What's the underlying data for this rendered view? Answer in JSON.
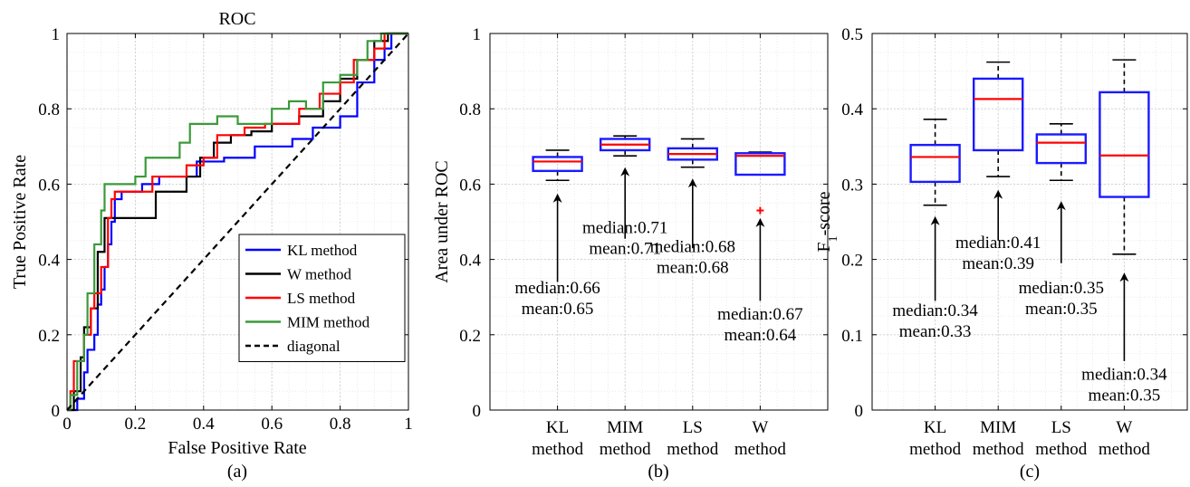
{
  "chart_data": [
    {
      "type": "line",
      "title": "ROC",
      "xlabel": "False Positive Rate",
      "ylabel": "True Positive Rate",
      "xlim": [
        0,
        1
      ],
      "ylim": [
        0,
        1
      ],
      "xticks": [
        "0",
        "0.2",
        "0.4",
        "0.6",
        "0.8",
        "1"
      ],
      "yticks": [
        "0",
        "0.2",
        "0.4",
        "0.6",
        "0.8",
        "1"
      ],
      "grid": true,
      "legend_position": "lower-right",
      "caption": "(a)",
      "series": [
        {
          "name": "KL method",
          "color": "#0000ff",
          "style": "solid",
          "points": [
            [
              0,
              0
            ],
            [
              0.03,
              0.03
            ],
            [
              0.05,
              0.1
            ],
            [
              0.06,
              0.16
            ],
            [
              0.08,
              0.2
            ],
            [
              0.09,
              0.28
            ],
            [
              0.1,
              0.32
            ],
            [
              0.11,
              0.38
            ],
            [
              0.12,
              0.44
            ],
            [
              0.13,
              0.5
            ],
            [
              0.14,
              0.56
            ],
            [
              0.16,
              0.58
            ],
            [
              0.2,
              0.58
            ],
            [
              0.22,
              0.6
            ],
            [
              0.27,
              0.62
            ],
            [
              0.32,
              0.62
            ],
            [
              0.38,
              0.66
            ],
            [
              0.43,
              0.66
            ],
            [
              0.46,
              0.67
            ],
            [
              0.5,
              0.67
            ],
            [
              0.55,
              0.7
            ],
            [
              0.6,
              0.7
            ],
            [
              0.66,
              0.72
            ],
            [
              0.72,
              0.75
            ],
            [
              0.8,
              0.78
            ],
            [
              0.85,
              0.87
            ],
            [
              0.9,
              0.93
            ],
            [
              0.93,
              0.96
            ],
            [
              0.95,
              1
            ],
            [
              1,
              1
            ]
          ]
        },
        {
          "name": "W method",
          "color": "#000000",
          "style": "solid",
          "points": [
            [
              0,
              0
            ],
            [
              0.02,
              0.05
            ],
            [
              0.04,
              0.14
            ],
            [
              0.05,
              0.22
            ],
            [
              0.07,
              0.27
            ],
            [
              0.09,
              0.42
            ],
            [
              0.11,
              0.51
            ],
            [
              0.15,
              0.51
            ],
            [
              0.2,
              0.51
            ],
            [
              0.26,
              0.58
            ],
            [
              0.3,
              0.58
            ],
            [
              0.35,
              0.62
            ],
            [
              0.39,
              0.67
            ],
            [
              0.43,
              0.71
            ],
            [
              0.48,
              0.73
            ],
            [
              0.54,
              0.74
            ],
            [
              0.6,
              0.76
            ],
            [
              0.68,
              0.78
            ],
            [
              0.75,
              0.82
            ],
            [
              0.8,
              0.88
            ],
            [
              0.85,
              0.93
            ],
            [
              0.9,
              0.98
            ],
            [
              0.94,
              1
            ],
            [
              1,
              1
            ]
          ]
        },
        {
          "name": "LS method",
          "color": "#ff0000",
          "style": "solid",
          "points": [
            [
              0,
              0
            ],
            [
              0.01,
              0.05
            ],
            [
              0.02,
              0.13
            ],
            [
              0.05,
              0.2
            ],
            [
              0.07,
              0.27
            ],
            [
              0.08,
              0.31
            ],
            [
              0.1,
              0.38
            ],
            [
              0.12,
              0.51
            ],
            [
              0.13,
              0.56
            ],
            [
              0.14,
              0.58
            ],
            [
              0.2,
              0.58
            ],
            [
              0.25,
              0.62
            ],
            [
              0.3,
              0.62
            ],
            [
              0.35,
              0.65
            ],
            [
              0.4,
              0.67
            ],
            [
              0.44,
              0.73
            ],
            [
              0.48,
              0.73
            ],
            [
              0.52,
              0.75
            ],
            [
              0.58,
              0.76
            ],
            [
              0.62,
              0.76
            ],
            [
              0.68,
              0.8
            ],
            [
              0.74,
              0.84
            ],
            [
              0.8,
              0.87
            ],
            [
              0.84,
              0.93
            ],
            [
              0.9,
              0.96
            ],
            [
              0.93,
              1
            ],
            [
              1,
              1
            ]
          ]
        },
        {
          "name": "MIM method",
          "color": "#3a9a3a",
          "style": "solid",
          "points": [
            [
              0,
              0
            ],
            [
              0.01,
              0.04
            ],
            [
              0.03,
              0.13
            ],
            [
              0.05,
              0.2
            ],
            [
              0.06,
              0.31
            ],
            [
              0.08,
              0.44
            ],
            [
              0.1,
              0.53
            ],
            [
              0.11,
              0.6
            ],
            [
              0.16,
              0.6
            ],
            [
              0.2,
              0.62
            ],
            [
              0.23,
              0.67
            ],
            [
              0.3,
              0.67
            ],
            [
              0.33,
              0.71
            ],
            [
              0.36,
              0.76
            ],
            [
              0.4,
              0.76
            ],
            [
              0.44,
              0.78
            ],
            [
              0.48,
              0.78
            ],
            [
              0.5,
              0.76
            ],
            [
              0.57,
              0.76
            ],
            [
              0.6,
              0.8
            ],
            [
              0.65,
              0.82
            ],
            [
              0.7,
              0.8
            ],
            [
              0.75,
              0.87
            ],
            [
              0.8,
              0.89
            ],
            [
              0.85,
              0.93
            ],
            [
              0.88,
              0.98
            ],
            [
              0.92,
              1
            ],
            [
              1,
              1
            ]
          ]
        },
        {
          "name": "diagonal",
          "color": "#000000",
          "style": "dashed",
          "points": [
            [
              0,
              0
            ],
            [
              1,
              1
            ]
          ]
        }
      ]
    },
    {
      "type": "box",
      "ylabel": "Area under ROC",
      "ylim": [
        0,
        1
      ],
      "yticks": [
        "0",
        "0.2",
        "0.4",
        "0.6",
        "0.8",
        "1"
      ],
      "grid": true,
      "caption": "(b)",
      "categories": [
        {
          "line1": "KL",
          "line2": "method",
          "whisker_low": 0.61,
          "q1": 0.635,
          "median": 0.66,
          "q3": 0.672,
          "whisker_high": 0.69,
          "outliers": [],
          "annotation": {
            "median_text": "median:0.66",
            "mean_text": "mean:0.65",
            "arrow_tail_y": 0.34,
            "arrow_head_y": 0.57,
            "text_y": 0.31
          }
        },
        {
          "line1": "MIM",
          "line2": "method",
          "whisker_low": 0.675,
          "q1": 0.69,
          "median": 0.705,
          "q3": 0.72,
          "whisker_high": 0.728,
          "outliers": [],
          "annotation": {
            "median_text": "median:0.71",
            "mean_text": "mean:0.71",
            "arrow_tail_y": 0.455,
            "arrow_head_y": 0.64,
            "text_y": 0.47
          }
        },
        {
          "line1": "LS",
          "line2": "method",
          "whisker_low": 0.645,
          "q1": 0.665,
          "median": 0.68,
          "q3": 0.695,
          "whisker_high": 0.72,
          "outliers": [],
          "annotation": {
            "median_text": "median:0.68",
            "mean_text": "mean:0.68",
            "arrow_tail_y": 0.43,
            "arrow_head_y": 0.61,
            "text_y": 0.42
          }
        },
        {
          "line1": "W",
          "line2": "method",
          "whisker_low": 0.625,
          "q1": 0.625,
          "median": 0.675,
          "q3": 0.682,
          "whisker_high": 0.685,
          "outliers": [
            0.53
          ],
          "annotation": {
            "median_text": "median:0.67",
            "mean_text": "mean:0.64",
            "arrow_tail_y": 0.29,
            "arrow_head_y": 0.505,
            "text_y": 0.24
          }
        }
      ]
    },
    {
      "type": "box",
      "ylabel": "F",
      "ylabel_subscript": "1",
      "ylabel_suffix": "-score",
      "ylim": [
        0,
        0.5
      ],
      "yticks": [
        "0",
        "0.1",
        "0.2",
        "0.3",
        "0.4",
        "0.5"
      ],
      "grid": true,
      "caption": "(c)",
      "categories": [
        {
          "line1": "KL",
          "line2": "method",
          "whisker_low": 0.272,
          "q1": 0.303,
          "median": 0.336,
          "q3": 0.352,
          "whisker_high": 0.386,
          "outliers": [],
          "annotation": {
            "median_text": "median:0.34",
            "mean_text": "mean:0.33",
            "arrow_tail_y": 0.145,
            "arrow_head_y": 0.255,
            "text_y": 0.125
          }
        },
        {
          "line1": "MIM",
          "line2": "method",
          "whisker_low": 0.31,
          "q1": 0.345,
          "median": 0.413,
          "q3": 0.44,
          "whisker_high": 0.462,
          "outliers": [],
          "annotation": {
            "median_text": "median:0.41",
            "mean_text": "mean:0.39",
            "arrow_tail_y": 0.225,
            "arrow_head_y": 0.29,
            "text_y": 0.215
          }
        },
        {
          "line1": "LS",
          "line2": "method",
          "whisker_low": 0.305,
          "q1": 0.328,
          "median": 0.355,
          "q3": 0.366,
          "whisker_high": 0.38,
          "outliers": [],
          "annotation": {
            "median_text": "median:0.35",
            "mean_text": "mean:0.35",
            "arrow_tail_y": 0.195,
            "arrow_head_y": 0.275,
            "text_y": 0.155
          }
        },
        {
          "line1": "W",
          "line2": "method",
          "whisker_low": 0.207,
          "q1": 0.283,
          "median": 0.338,
          "q3": 0.422,
          "whisker_high": 0.465,
          "outliers": [],
          "annotation": {
            "median_text": "median:0.34",
            "mean_text": "mean:0.35",
            "arrow_tail_y": 0.065,
            "arrow_head_y": 0.18,
            "text_y": 0.04
          }
        }
      ]
    }
  ]
}
